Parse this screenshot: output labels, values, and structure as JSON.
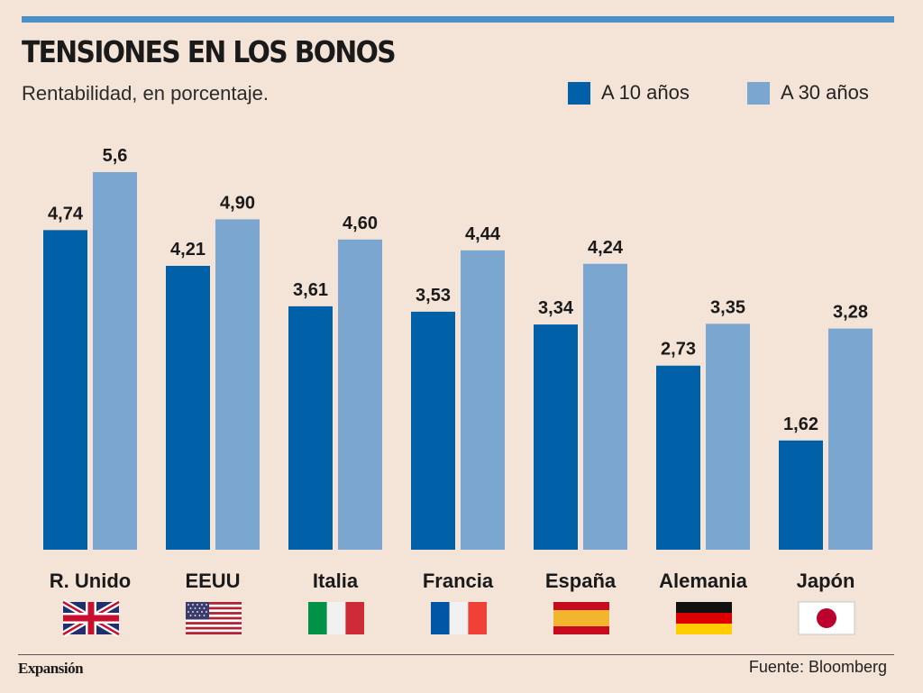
{
  "header": {
    "title": "TENSIONES EN LOS BONOS",
    "subtitle": "Rentabilidad, en porcentaje."
  },
  "colors": {
    "series_10": "#0061a8",
    "series_30": "#7aa6d0",
    "background": "#f4e4d7"
  },
  "chart_data": {
    "type": "bar",
    "title": "TENSIONES EN LOS BONOS",
    "subtitle": "Rentabilidad, en porcentaje.",
    "xlabel": "",
    "ylabel": "",
    "ylim": [
      0,
      5.6
    ],
    "grid": false,
    "legend_position": "top-right",
    "categories": [
      "R. Unido",
      "EEUU",
      "Italia",
      "Francia",
      "España",
      "Alemania",
      "Japón"
    ],
    "series": [
      {
        "name": "A 10 años",
        "values": [
          4.74,
          4.21,
          3.61,
          3.53,
          3.34,
          2.73,
          1.62
        ],
        "labels": [
          "4,74",
          "4,21",
          "3,61",
          "3,53",
          "3,34",
          "2,73",
          "1,62"
        ]
      },
      {
        "name": "A 30 años",
        "values": [
          5.6,
          4.9,
          4.6,
          4.44,
          4.24,
          3.35,
          3.28
        ],
        "labels": [
          "5,6",
          "4,90",
          "4,60",
          "4,44",
          "4,24",
          "3,35",
          "3,28"
        ]
      }
    ]
  },
  "flags": [
    {
      "name": "uk-flag-icon"
    },
    {
      "name": "us-flag-icon"
    },
    {
      "name": "italy-flag-icon"
    },
    {
      "name": "france-flag-icon"
    },
    {
      "name": "spain-flag-icon"
    },
    {
      "name": "germany-flag-icon"
    },
    {
      "name": "japan-flag-icon"
    }
  ],
  "footer": {
    "brand": "Expansión",
    "source": "Fuente: Bloomberg"
  }
}
